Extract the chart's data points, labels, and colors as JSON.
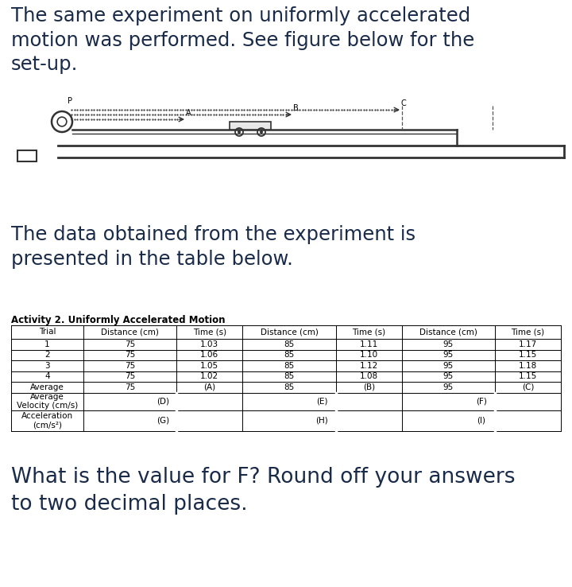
{
  "title_text": "The same experiment on uniformly accelerated\nmotion was performed. See figure below for the\nset-up.",
  "subtitle_text": "The data obtained from the experiment is\npresented in the table below.",
  "table_title": "Activity 2. Uniformly Accelerated Motion",
  "question_text": "What is the value for F? Round off your answers\nto two decimal places.",
  "col_headers": [
    "Trial",
    "Distance (cm)",
    "Time (s)",
    "Distance (cm)",
    "Time (s)",
    "Distance (cm)",
    "Time (s)"
  ],
  "rows": [
    [
      "1",
      "75",
      "1.03",
      "85",
      "1.11",
      "95",
      "1.17"
    ],
    [
      "2",
      "75",
      "1.06",
      "85",
      "1.10",
      "95",
      "1.15"
    ],
    [
      "3",
      "75",
      "1.05",
      "85",
      "1.12",
      "95",
      "1.18"
    ],
    [
      "4",
      "75",
      "1.02",
      "85",
      "1.08",
      "95",
      "1.15"
    ],
    [
      "Average",
      "75",
      "(A)",
      "85",
      "(B)",
      "95",
      "(C)"
    ],
    [
      "Average\nVelocity (cm/s)",
      "(D)",
      "",
      "(E)",
      "",
      "(F)",
      ""
    ],
    [
      "Acceleration\n(cm/s²)",
      "(G)",
      "",
      "(H)",
      "",
      "(I)",
      ""
    ]
  ],
  "bg_color": "#ffffff",
  "text_color": "#1a2b4a",
  "title_fontsize": 17.5,
  "subtitle_fontsize": 17.5,
  "question_fontsize": 19,
  "table_title_fontsize": 8.5,
  "table_data_fontsize": 7.5,
  "diagram_text_color": "#000000"
}
